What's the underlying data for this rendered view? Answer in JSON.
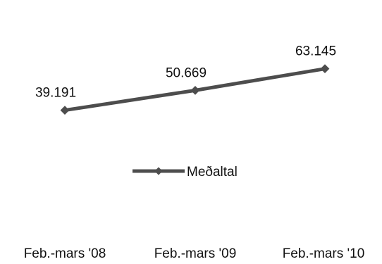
{
  "chart_data": {
    "type": "line",
    "categories": [
      "Feb.-mars '08",
      "Feb.-mars '09",
      "Feb.-mars '10"
    ],
    "series": [
      {
        "name": "Meðaltal",
        "values": [
          39.191,
          50.669,
          63.145
        ],
        "labels": [
          "39.191",
          "50.669",
          "63.145"
        ],
        "color": "#4d4d4d",
        "marker": "diamond"
      }
    ],
    "ylim": [
      0,
      80
    ],
    "grid": false,
    "legend_position": "center"
  }
}
